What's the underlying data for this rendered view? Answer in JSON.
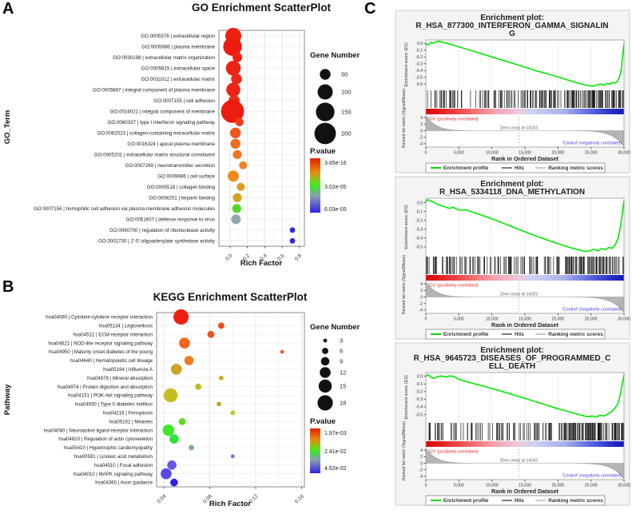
{
  "figure": {
    "panel_labels": [
      "A",
      "B",
      "C"
    ],
    "background": "#ffffff"
  },
  "chart_data": [
    {
      "type": "scatter",
      "panel": "A",
      "title": "GO Enrichment ScatterPlot",
      "xlabel": "Rich Factor",
      "ylabel": "GO_Term",
      "x_ticks": [
        0,
        0.2,
        0.4,
        0.6,
        0.8
      ],
      "x_tick_labels": [
        "0.0",
        "0.2",
        "0.4",
        "0.6",
        "0.8"
      ],
      "legend": {
        "size_title": "Gene Number",
        "sizes": [
          50,
          100,
          150,
          200
        ],
        "pvalue_title": "P.value",
        "pvalue_labels": [
          "3.65e-16",
          "3.02e-05",
          "6.03e-05"
        ],
        "pvalue_gradient": [
          [
            0,
            "#e42000"
          ],
          [
            0.25,
            "#e88a10"
          ],
          [
            0.45,
            "#62dd1e"
          ],
          [
            0.52,
            "#3fe232"
          ],
          [
            0.7,
            "#8e9cb4"
          ],
          [
            1,
            "#2d24dd"
          ]
        ]
      },
      "points": [
        {
          "label": "GO:0005576 | extracellular region",
          "rich_factor": 0.037,
          "gene_number": 110,
          "color": "#ed2114"
        },
        {
          "label": "GO:0005886 | plasma membrane",
          "rich_factor": 0.028,
          "gene_number": 150,
          "color": "#ed1b10"
        },
        {
          "label": "GO:0030198 | extracellular matrix organization",
          "rich_factor": 0.083,
          "gene_number": 40,
          "color": "#ed2114"
        },
        {
          "label": "GO:0005615 | extracellular space",
          "rich_factor": 0.037,
          "gene_number": 95,
          "color": "#ed2114"
        },
        {
          "label": "GO:0031012 | extracellular matrix",
          "rich_factor": 0.074,
          "gene_number": 50,
          "color": "#ee2815"
        },
        {
          "label": "GO:0005887 | integral component of plasma membrane",
          "rich_factor": 0.037,
          "gene_number": 85,
          "color": "#ee2415"
        },
        {
          "label": "GO:0007155 | cell adhesion",
          "rich_factor": 0.046,
          "gene_number": 55,
          "color": "#ee2c16"
        },
        {
          "label": "GO:0016021 | integral component of membrane",
          "rich_factor": 0.028,
          "gene_number": 230,
          "color": "#ed1b10"
        },
        {
          "label": "GO:0060337 | type I interferon signaling pathway",
          "rich_factor": 0.108,
          "gene_number": 30,
          "color": "#ee3a19"
        },
        {
          "label": "GO:0062023 | collagen-containing extracellular matrix",
          "rich_factor": 0.062,
          "gene_number": 50,
          "color": "#f0571d"
        },
        {
          "label": "GO:0016324 | apical plasma membrane",
          "rich_factor": 0.062,
          "gene_number": 42,
          "color": "#f16a1e"
        },
        {
          "label": "GO:0005201 | extracellular matrix structural constituent",
          "rich_factor": 0.083,
          "gene_number": 35,
          "color": "#f0741f"
        },
        {
          "label": "GO:0007269 | neurotransmitter secretion",
          "rich_factor": 0.15,
          "gene_number": 28,
          "color": "#ef8120"
        },
        {
          "label": "GO:0009986 | cell surface",
          "rich_factor": 0.037,
          "gene_number": 55,
          "color": "#ee8b20"
        },
        {
          "label": "GO:0005518 | collagen binding",
          "rich_factor": 0.123,
          "gene_number": 28,
          "color": "#e19d21"
        },
        {
          "label": "GO:0008201 | heparin binding",
          "rich_factor": 0.083,
          "gene_number": 35,
          "color": "#d2a521"
        },
        {
          "label": "GO:0007156 | homophilic cell adhesion via plasma membrane adhesion molecules",
          "rich_factor": 0.077,
          "gene_number": 35,
          "color": "#52d926"
        },
        {
          "label": "GO:0051607 | defense response to virus",
          "rich_factor": 0.067,
          "gene_number": 40,
          "color": "#8fa8b0"
        },
        {
          "label": "GO:0060700 | regulation of ribonuclease activity",
          "rich_factor": 0.72,
          "gene_number": 13,
          "color": "#3029e2"
        },
        {
          "label": "GO:0001730 | 2'-5'-oligoadenylate synthetase activity",
          "rich_factor": 0.72,
          "gene_number": 13,
          "color": "#3029e2"
        }
      ]
    },
    {
      "type": "scatter",
      "panel": "B",
      "title": "KEGG Enrichment ScatterPlot",
      "xlabel": "Rich Factor",
      "ylabel": "Pathway",
      "x_ticks": [
        0.04,
        0.08,
        0.12,
        0.16
      ],
      "x_tick_labels": [
        "0.04",
        "0.08",
        "0.12",
        "0.16"
      ],
      "legend": {
        "size_title": "Gene Number",
        "sizes": [
          3,
          6,
          9,
          12,
          15,
          18
        ],
        "pvalue_title": "P.value",
        "pvalue_labels": [
          "1.97e-03",
          "2.41e-02",
          "4.62e-02"
        ],
        "pvalue_gradient": [
          [
            0,
            "#e42000"
          ],
          [
            0.25,
            "#e88a10"
          ],
          [
            0.45,
            "#62dd1e"
          ],
          [
            0.52,
            "#3fe232"
          ],
          [
            0.7,
            "#8e9cb4"
          ],
          [
            1,
            "#2d24dd"
          ]
        ]
      },
      "points": [
        {
          "label": "hsa04060 | Cytokine-cytokine receptor interaction",
          "rich_factor": 0.055,
          "gene_number": 18,
          "color": "#ee2012"
        },
        {
          "label": "hsa05134 | Legionellosis",
          "rich_factor": 0.09,
          "gene_number": 6,
          "color": "#f04c1b"
        },
        {
          "label": "hsa04512 | ECM-receptor interaction",
          "rich_factor": 0.081,
          "gene_number": 7,
          "color": "#f0551c"
        },
        {
          "label": "hsa04621 | NOD-like receptor signaling pathway",
          "rich_factor": 0.058,
          "gene_number": 12,
          "color": "#f0661d"
        },
        {
          "label": "hsa04950 | Maturity onset diabetes of the young",
          "rich_factor": 0.143,
          "gene_number": 3,
          "color": "#f0581c"
        },
        {
          "label": "hsa04640 | Hematopoietic cell lineage",
          "rich_factor": 0.062,
          "gene_number": 10,
          "color": "#ef7a1f"
        },
        {
          "label": "hsa05164 | Influenza A",
          "rich_factor": 0.051,
          "gene_number": 12,
          "color": "#c9a321"
        },
        {
          "label": "hsa04978 | Mineral absorption",
          "rich_factor": 0.09,
          "gene_number": 4,
          "color": "#c9ae21"
        },
        {
          "label": "hsa04974 | Protein digestion and absorption",
          "rich_factor": 0.07,
          "gene_number": 6,
          "color": "#c3bc22"
        },
        {
          "label": "hsa04151 | PI3K-Akt signaling pathway",
          "rich_factor": 0.046,
          "gene_number": 16,
          "color": "#c5bd22"
        },
        {
          "label": "hsa04930 | Type II diabetes mellitus",
          "rich_factor": 0.088,
          "gene_number": 4,
          "color": "#bfa521"
        },
        {
          "label": "hsa04216 | Ferroptosis",
          "rich_factor": 0.1,
          "gene_number": 4,
          "color": "#a8cf23"
        },
        {
          "label": "hsa05162 | Measles",
          "rich_factor": 0.056,
          "gene_number": 7,
          "color": "#5cd926"
        },
        {
          "label": "hsa04080 | Neuroactive ligand-receptor interaction",
          "rich_factor": 0.044,
          "gene_number": 13,
          "color": "#3fe827"
        },
        {
          "label": "hsa04810 | Regulation of actin cytoskeleton",
          "rich_factor": 0.049,
          "gene_number": 10,
          "color": "#2ee13c"
        },
        {
          "label": "hsa05410 | Hypertrophic cardiomyopathy",
          "rich_factor": 0.064,
          "gene_number": 5,
          "color": "#76b193"
        },
        {
          "label": "hsa00591 | Linoleic acid metabolism",
          "rich_factor": 0.1,
          "gene_number": 3,
          "color": "#7b6ade"
        },
        {
          "label": "hsa04510 | Focal adhesion",
          "rich_factor": 0.047,
          "gene_number": 10,
          "color": "#6656e2"
        },
        {
          "label": "hsa04010 | MAPK signaling pathway",
          "rich_factor": 0.042,
          "gene_number": 12,
          "color": "#5b49e4"
        },
        {
          "label": "hsa04360 | Axon guidance",
          "rich_factor": 0.049,
          "gene_number": 8,
          "color": "#2b22ea"
        }
      ]
    },
    {
      "type": "line",
      "panel": "C",
      "subtype": "gsea-enrichment",
      "shared": {
        "title_prefix": "Enrichment plot:",
        "es_axis_label": "Enrichment score (ES)",
        "metric_axis_label": "Ranked list metric (Signal2Noise)",
        "positive_label": "'OV' (positively correlated)",
        "negative_label": "'Control' (negatively correlated)",
        "zero_cross_label": "Zero cross at 14101",
        "zero_cross_rank": 14101,
        "xlabel": "Rank in Ordered Dataset",
        "x_ticks": [
          0,
          5000,
          10000,
          15000,
          20000,
          25000,
          30000
        ],
        "x_tick_labels": [
          "0",
          "5,000",
          "10,000",
          "15,000",
          "20,000",
          "25,000",
          "30,000"
        ],
        "x_max": 30000,
        "metric_ticks": [
          4,
          2,
          0,
          -2,
          -4
        ],
        "metric_range": [
          5,
          -5
        ],
        "curve_color": "#00e800",
        "legend_items": [
          {
            "label": "Enrichment profile",
            "color": "#00d800"
          },
          {
            "label": "Hits",
            "color": "#444444"
          },
          {
            "label": "Ranking metric scores",
            "color": "#b0b0b0"
          }
        ],
        "bar_gradient": [
          [
            0,
            "#dd0000"
          ],
          [
            0.18,
            "#ee5050"
          ],
          [
            0.34,
            "#f4a0aa"
          ],
          [
            0.47,
            "#e9c9dc"
          ],
          [
            0.54,
            "#ccd2f2"
          ],
          [
            0.7,
            "#a8b0ea"
          ],
          [
            0.84,
            "#5560dd"
          ],
          [
            0.95,
            "#2228c8"
          ],
          [
            1,
            "#1a1ab0"
          ]
        ]
      },
      "plots": [
        {
          "title_lines": [
            "R_HSA_877300_INTERFERON_GAMMA_SIGNALIN",
            "G"
          ],
          "es_ticks": [
            0,
            -0.1,
            -0.2,
            -0.3,
            -0.4,
            -0.5,
            -0.6
          ],
          "es_tick_labels": [
            "0.0",
            "-0.1",
            "-0.2",
            "-0.3",
            "-0.4",
            "-0.5",
            "-0.6"
          ],
          "es_range": [
            0.05,
            -0.68
          ],
          "es_min": -0.63,
          "hits_seed": 11,
          "curve": [
            [
              0,
              0
            ],
            [
              250,
              -0.025
            ],
            [
              500,
              -0.01
            ],
            [
              800,
              0.015
            ],
            [
              1100,
              0
            ],
            [
              1500,
              0.02
            ],
            [
              2000,
              0.03
            ],
            [
              2600,
              0.015
            ],
            [
              3200,
              0
            ],
            [
              5000,
              -0.05
            ],
            [
              8000,
              -0.14
            ],
            [
              11000,
              -0.23
            ],
            [
              14000,
              -0.32
            ],
            [
              17000,
              -0.41
            ],
            [
              19500,
              -0.48
            ],
            [
              21500,
              -0.54
            ],
            [
              23000,
              -0.585
            ],
            [
              24200,
              -0.615
            ],
            [
              25200,
              -0.63
            ],
            [
              25900,
              -0.615
            ],
            [
              26400,
              -0.6
            ],
            [
              26900,
              -0.615
            ],
            [
              27400,
              -0.59
            ],
            [
              27900,
              -0.6
            ],
            [
              28300,
              -0.575
            ],
            [
              28700,
              -0.585
            ],
            [
              29000,
              -0.555
            ],
            [
              29300,
              -0.5
            ],
            [
              29550,
              -0.4
            ],
            [
              29750,
              -0.22
            ],
            [
              29900,
              -0.08
            ],
            [
              30000,
              -0.01
            ]
          ]
        },
        {
          "title_lines": [
            "R_HSA_5334118_DNA_METHYLATION"
          ],
          "es_ticks": [
            0,
            -0.1,
            -0.2,
            -0.3,
            -0.4,
            -0.5
          ],
          "es_tick_labels": [
            "0.0",
            "-0.1",
            "-0.2",
            "-0.3",
            "-0.4",
            "-0.5"
          ],
          "es_range": [
            0.05,
            -0.6
          ],
          "es_min": -0.55,
          "hits_seed": 22,
          "curve": [
            [
              0,
              0.01
            ],
            [
              300,
              0.035
            ],
            [
              700,
              0.02
            ],
            [
              1200,
              0.005
            ],
            [
              1800,
              -0.02
            ],
            [
              2400,
              -0.035
            ],
            [
              3000,
              -0.05
            ],
            [
              3600,
              -0.065
            ],
            [
              4100,
              -0.05
            ],
            [
              4600,
              -0.07
            ],
            [
              5200,
              -0.085
            ],
            [
              6000,
              -0.08
            ],
            [
              8000,
              -0.13
            ],
            [
              11000,
              -0.21
            ],
            [
              14000,
              -0.3
            ],
            [
              17000,
              -0.385
            ],
            [
              19500,
              -0.45
            ],
            [
              21500,
              -0.5
            ],
            [
              23000,
              -0.53
            ],
            [
              24000,
              -0.55
            ],
            [
              24800,
              -0.545
            ],
            [
              25400,
              -0.525
            ],
            [
              26000,
              -0.545
            ],
            [
              26600,
              -0.52
            ],
            [
              27200,
              -0.53
            ],
            [
              27700,
              -0.505
            ],
            [
              28200,
              -0.515
            ],
            [
              28700,
              -0.47
            ],
            [
              29100,
              -0.4
            ],
            [
              29400,
              -0.3
            ],
            [
              29650,
              -0.17
            ],
            [
              29850,
              -0.05
            ],
            [
              30000,
              0.02
            ]
          ]
        },
        {
          "title_lines": [
            "R_HSA_9645723_DISEASES_OF_PROGRAMMED_C",
            "ELL_DEATH"
          ],
          "es_ticks": [
            0,
            -0.1,
            -0.2,
            -0.3,
            -0.4,
            -0.5
          ],
          "es_tick_labels": [
            "0.0",
            "-0.1",
            "-0.2",
            "-0.3",
            "-0.4",
            "-0.5"
          ],
          "es_range": [
            0.05,
            -0.6
          ],
          "es_min": -0.53,
          "hits_seed": 33,
          "curve": [
            [
              0,
              0.005
            ],
            [
              400,
              0.02
            ],
            [
              800,
              -0.015
            ],
            [
              1300,
              -0.025
            ],
            [
              1800,
              -0.005
            ],
            [
              2400,
              0.005
            ],
            [
              3000,
              -0.01
            ],
            [
              3600,
              0.005
            ],
            [
              4200,
              0
            ],
            [
              4800,
              -0.03
            ],
            [
              5500,
              -0.055
            ],
            [
              7000,
              -0.09
            ],
            [
              9000,
              -0.135
            ],
            [
              12000,
              -0.21
            ],
            [
              15000,
              -0.29
            ],
            [
              18000,
              -0.37
            ],
            [
              20000,
              -0.425
            ],
            [
              21500,
              -0.46
            ],
            [
              22700,
              -0.49
            ],
            [
              23700,
              -0.515
            ],
            [
              24500,
              -0.53
            ],
            [
              25200,
              -0.52
            ],
            [
              25800,
              -0.535
            ],
            [
              26400,
              -0.51
            ],
            [
              27000,
              -0.52
            ],
            [
              27600,
              -0.49
            ],
            [
              28100,
              -0.465
            ],
            [
              28600,
              -0.42
            ],
            [
              29000,
              -0.37
            ],
            [
              29300,
              -0.29
            ],
            [
              29600,
              -0.17
            ],
            [
              29800,
              -0.07
            ],
            [
              30000,
              0.02
            ]
          ]
        }
      ]
    }
  ]
}
